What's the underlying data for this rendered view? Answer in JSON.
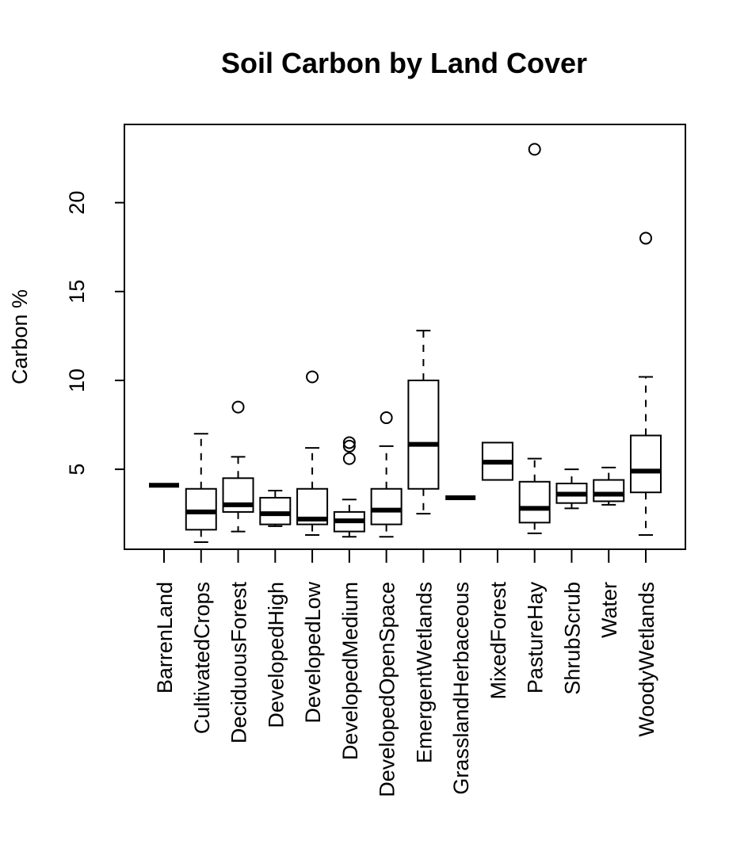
{
  "chart_data": {
    "type": "boxplot",
    "title": "Soil Carbon by Land Cover",
    "xlabel": "",
    "ylabel": "Carbon %",
    "ylim": [
      0.5,
      24.4
    ],
    "yticks": [
      5,
      10,
      15,
      20
    ],
    "categories": [
      "BarrenLand",
      "CultivatedCrops",
      "DeciduousForest",
      "DevelopedHigh",
      "DevelopedLow",
      "DevelopedMedium",
      "DevelopedOpenSpace",
      "EmergentWetlands",
      "GrasslandHerbaceous",
      "MixedForest",
      "PastureHay",
      "ShrubScrub",
      "Water",
      "WoodyWetlands"
    ],
    "boxes": [
      {
        "whisker_low": 4.1,
        "q1": 4.1,
        "median": 4.1,
        "q3": 4.1,
        "whisker_high": 4.1,
        "outliers": []
      },
      {
        "whisker_low": 0.9,
        "q1": 1.6,
        "median": 2.6,
        "q3": 3.9,
        "whisker_high": 7.0,
        "outliers": []
      },
      {
        "whisker_low": 1.5,
        "q1": 2.6,
        "median": 3.0,
        "q3": 4.5,
        "whisker_high": 5.7,
        "outliers": [
          8.5
        ]
      },
      {
        "whisker_low": 1.8,
        "q1": 1.9,
        "median": 2.5,
        "q3": 3.4,
        "whisker_high": 3.8,
        "outliers": []
      },
      {
        "whisker_low": 1.3,
        "q1": 1.9,
        "median": 2.2,
        "q3": 3.9,
        "whisker_high": 6.2,
        "outliers": [
          10.2
        ]
      },
      {
        "whisker_low": 1.2,
        "q1": 1.5,
        "median": 2.1,
        "q3": 2.6,
        "whisker_high": 3.3,
        "outliers": [
          5.6,
          6.3,
          6.5
        ]
      },
      {
        "whisker_low": 1.2,
        "q1": 1.9,
        "median": 2.7,
        "q3": 3.9,
        "whisker_high": 6.3,
        "outliers": [
          7.9
        ]
      },
      {
        "whisker_low": 2.5,
        "q1": 3.9,
        "median": 6.4,
        "q3": 10.0,
        "whisker_high": 12.8,
        "outliers": []
      },
      {
        "whisker_low": 3.4,
        "q1": 3.4,
        "median": 3.4,
        "q3": 3.4,
        "whisker_high": 3.4,
        "outliers": []
      },
      {
        "whisker_low": 4.4,
        "q1": 4.4,
        "median": 5.4,
        "q3": 6.5,
        "whisker_high": 6.5,
        "outliers": []
      },
      {
        "whisker_low": 1.4,
        "q1": 2.0,
        "median": 2.8,
        "q3": 4.3,
        "whisker_high": 5.6,
        "outliers": [
          23.0
        ]
      },
      {
        "whisker_low": 2.8,
        "q1": 3.1,
        "median": 3.6,
        "q3": 4.2,
        "whisker_high": 5.0,
        "outliers": []
      },
      {
        "whisker_low": 3.0,
        "q1": 3.2,
        "median": 3.6,
        "q3": 4.4,
        "whisker_high": 5.1,
        "outliers": []
      },
      {
        "whisker_low": 1.3,
        "q1": 3.7,
        "median": 4.9,
        "q3": 6.9,
        "whisker_high": 10.2,
        "outliers": [
          18.0
        ]
      }
    ],
    "grid": false,
    "colors": {
      "stroke": "#000000",
      "background": "#ffffff"
    }
  }
}
